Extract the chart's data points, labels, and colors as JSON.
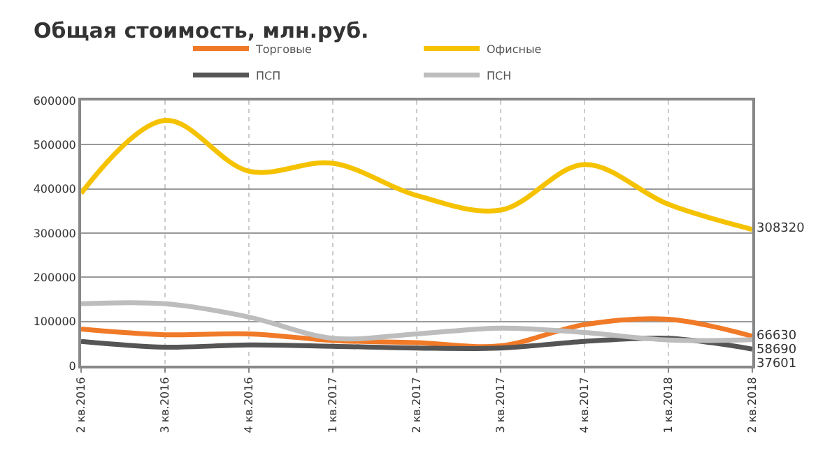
{
  "chart_data": {
    "type": "line",
    "title": "Общая стоимость, млн.руб.",
    "categories": [
      "2 кв.2016",
      "3 кв.2016",
      "4 кв.2016",
      "1 кв.2017",
      "2 кв.2017",
      "3 кв.2017",
      "4 кв.2017",
      "1 кв.2018",
      "2 кв.2018"
    ],
    "series": [
      {
        "name": "Торговые",
        "color": "#f07a28",
        "values": [
          83000,
          70000,
          72000,
          57000,
          52000,
          45000,
          93000,
          105000,
          66630
        ],
        "value_labels": [
          null,
          null,
          null,
          null,
          null,
          null,
          null,
          null,
          "66630"
        ]
      },
      {
        "name": "Офисные",
        "color": "#f5c200",
        "values": [
          390000,
          555000,
          440000,
          458000,
          385000,
          352000,
          455000,
          365000,
          308320
        ],
        "value_labels": [
          null,
          null,
          null,
          null,
          null,
          null,
          null,
          null,
          "308320"
        ]
      },
      {
        "name": "ПСП",
        "color": "#555555",
        "values": [
          55000,
          42000,
          47000,
          44000,
          40000,
          40000,
          55000,
          62000,
          37601
        ],
        "value_labels": [
          null,
          null,
          null,
          null,
          null,
          null,
          null,
          null,
          "37601"
        ]
      },
      {
        "name": "ПСН",
        "color": "#bdbdbd",
        "values": [
          140000,
          140000,
          110000,
          62000,
          72000,
          85000,
          75000,
          58000,
          58690
        ],
        "value_labels": [
          null,
          null,
          null,
          null,
          null,
          null,
          null,
          null,
          "58690"
        ]
      }
    ],
    "ylim": [
      0,
      600000
    ],
    "yticks": [
      0,
      100000,
      200000,
      300000,
      400000,
      500000,
      600000
    ],
    "grid": true,
    "legend": "top",
    "marker": "none",
    "line_style": "solid"
  }
}
